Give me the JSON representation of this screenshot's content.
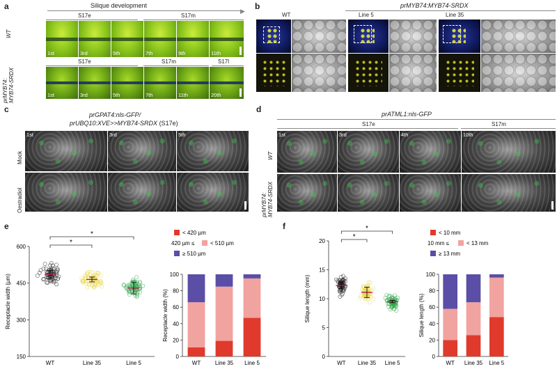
{
  "panels": {
    "a": {
      "letter": "a",
      "title": "Silique development",
      "row_labels": [
        "WT",
        "prMYB74:\nMYB74-SRDX"
      ],
      "row_label_wt": "WT",
      "row_label_line1": "prMYB74:",
      "row_label_line2": "MYB74-SRDX",
      "wt_stages": [
        "S17e",
        "S17m"
      ],
      "srdx_stages": [
        "S17e",
        "S17m",
        "S17l"
      ],
      "wt_tiles": [
        "1st",
        "3rd",
        "5th",
        "7th",
        "9th",
        "11th"
      ],
      "srdx_tiles": [
        "1st",
        "3rd",
        "5th",
        "7th",
        "11th",
        "20th"
      ]
    },
    "b": {
      "letter": "b",
      "title": "prMYB74:MYB74-SRDX",
      "columns": [
        "WT",
        "Line 5",
        "Line 35"
      ]
    },
    "c": {
      "letter": "c",
      "title_line1": "prGPAT4:nls-GFP/",
      "title_line2_italic": "prUBQ10:XVE>>MYB74-SRDX",
      "title_line2_plain": " (S17e)",
      "rows": [
        "Mock",
        "Oestradiol"
      ],
      "tiles": [
        "1st",
        "3rd",
        "5th"
      ]
    },
    "d": {
      "letter": "d",
      "title": "prATML1:nls-GFP",
      "stages": [
        "S17e",
        "S17m"
      ],
      "rows": [
        "WT",
        "prMYB74:\nMYB74-SRDX"
      ],
      "row_label_line1": "prMYB74:",
      "row_label_line2": "MYB74-SRDX",
      "tiles": [
        "1st",
        "3rd",
        "4th",
        "10th"
      ]
    },
    "e": {
      "letter": "e",
      "legend": [
        "< 420 µm",
        "420 µm ≤",
        "< 510 µm",
        "≥ 510 µm"
      ],
      "significance": [
        "*",
        "*"
      ]
    },
    "f": {
      "letter": "f",
      "legend": [
        "< 10 mm",
        "10 mm ≤",
        "< 13 mm",
        "≥ 13 mm"
      ],
      "significance": [
        "*",
        "*"
      ]
    }
  },
  "colors": {
    "red": "#e03a2c",
    "pink": "#f1a3a0",
    "navy": "#5a4ea6",
    "wt_scatter": "#222222",
    "line35_scatter": "#e8d84a",
    "line5_scatter": "#2fa64a",
    "mean_bar": "#c2185b"
  },
  "chart_data": [
    {
      "type": "scatter",
      "panel": "e-scatter",
      "categories": [
        "WT",
        "Line 35",
        "Line 5"
      ],
      "ylabel": "Receptacle width (µm)",
      "ylim": [
        150,
        600
      ],
      "yticks": [
        150,
        300,
        450,
        600
      ],
      "means": [
        486,
        465,
        430
      ],
      "sd": [
        16,
        10,
        24
      ]
    },
    {
      "type": "bar",
      "panel": "e-stacked",
      "categories": [
        "WT",
        "Line 35",
        "Line 5"
      ],
      "ylabel": "Receptacle width (%)",
      "ylim": [
        0,
        100
      ],
      "yticks": [
        0,
        20,
        40,
        60,
        80,
        100
      ],
      "series": [
        {
          "name": "< 420 µm",
          "values": [
            11,
            19,
            47
          ]
        },
        {
          "name": "420 µm ≤ < 510 µm",
          "values": [
            55,
            66,
            48
          ]
        },
        {
          "name": "≥ 510 µm",
          "values": [
            34,
            15,
            5
          ]
        }
      ]
    },
    {
      "type": "scatter",
      "panel": "f-scatter",
      "categories": [
        "WT",
        "Line 35",
        "Line 5"
      ],
      "ylabel": "Silique length (mm)",
      "ylim": [
        0,
        20
      ],
      "yticks": [
        0,
        5,
        10,
        15,
        20
      ],
      "means": [
        12.3,
        11.1,
        9.5
      ],
      "sd": [
        0.6,
        0.9,
        0.2
      ]
    },
    {
      "type": "bar",
      "panel": "f-stacked",
      "categories": [
        "WT",
        "Line 35",
        "Line 5"
      ],
      "ylabel": "Silique length (%)",
      "ylim": [
        0,
        100
      ],
      "yticks": [
        0,
        20,
        40,
        60,
        80,
        100
      ],
      "series": [
        {
          "name": "< 10 mm",
          "values": [
            20,
            26,
            48
          ]
        },
        {
          "name": "10 mm ≤ < 13 mm",
          "values": [
            38,
            40,
            48
          ]
        },
        {
          "name": "≥ 13 mm",
          "values": [
            42,
            34,
            4
          ]
        }
      ]
    }
  ]
}
